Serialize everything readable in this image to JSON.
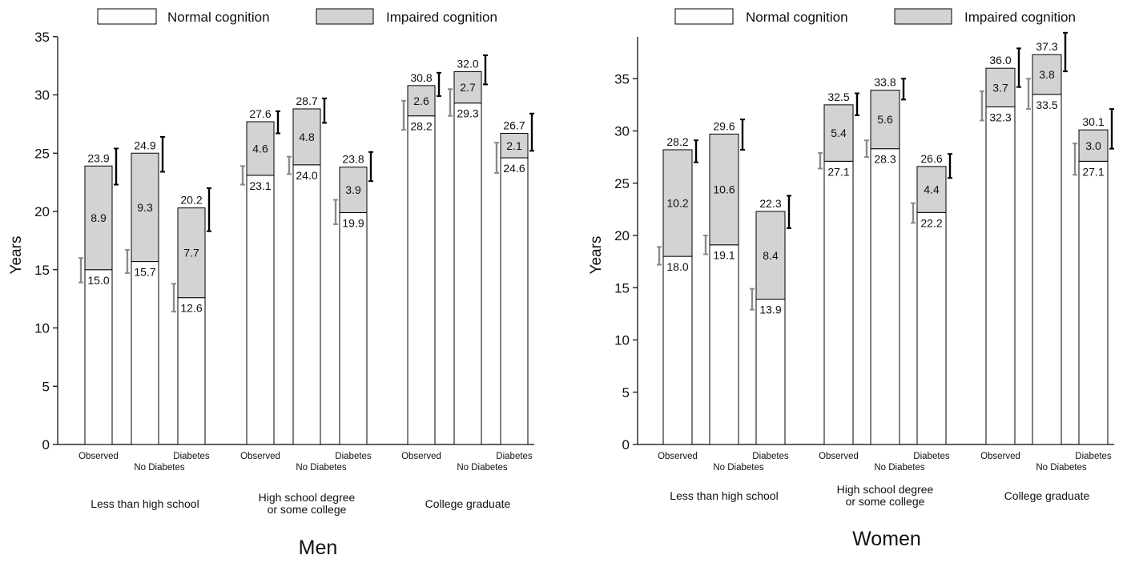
{
  "colors": {
    "normal": "#ffffff",
    "impaired": "#d3d3d3",
    "error_bar_normal": "#8a8a8a",
    "error_bar_total": "#000000"
  },
  "legend": {
    "normal_label": "Normal cognition",
    "impaired_label": "Impaired cognition"
  },
  "chart_data": [
    {
      "type": "bar",
      "stacked": true,
      "title": "Men",
      "ylabel": "Years",
      "ylim": [
        0,
        35
      ],
      "yticks": [
        0,
        5,
        10,
        15,
        20,
        25,
        30,
        35
      ],
      "legend_position": "top",
      "groups": [
        "Less than high school",
        "High school degree\nor some college",
        "College graduate"
      ],
      "bar_labels": [
        "Observed",
        "No Diabetes",
        "Diabetes"
      ],
      "series": [
        {
          "name": "Normal cognition",
          "values": [
            [
              15.0,
              15.7,
              12.6
            ],
            [
              23.1,
              24.0,
              19.9
            ],
            [
              28.2,
              29.3,
              24.6
            ]
          ]
        },
        {
          "name": "Impaired cognition",
          "values": [
            [
              8.9,
              9.3,
              7.7
            ],
            [
              4.6,
              4.8,
              3.9
            ],
            [
              2.6,
              2.7,
              2.1
            ]
          ]
        }
      ],
      "totals": [
        [
          23.9,
          24.9,
          20.2
        ],
        [
          27.6,
          28.7,
          23.8
        ],
        [
          30.8,
          32.0,
          26.7
        ]
      ],
      "normal_ci": [
        [
          [
            13.9,
            16.0
          ],
          [
            14.7,
            16.7
          ],
          [
            11.4,
            13.8
          ]
        ],
        [
          [
            22.3,
            23.9
          ],
          [
            23.2,
            24.7
          ],
          [
            18.9,
            21.0
          ]
        ],
        [
          [
            27.0,
            29.5
          ],
          [
            28.2,
            30.5
          ],
          [
            23.3,
            25.9
          ]
        ]
      ],
      "total_ci": [
        [
          [
            22.3,
            25.4
          ],
          [
            23.4,
            26.4
          ],
          [
            18.3,
            22.0
          ]
        ],
        [
          [
            26.7,
            28.6
          ],
          [
            27.6,
            29.7
          ],
          [
            22.6,
            25.1
          ]
        ],
        [
          [
            29.9,
            31.9
          ],
          [
            30.9,
            33.4
          ],
          [
            25.2,
            28.4
          ]
        ]
      ]
    },
    {
      "type": "bar",
      "stacked": true,
      "title": "Women",
      "ylabel": "Years",
      "ylim": [
        0,
        39
      ],
      "yticks": [
        0,
        5,
        10,
        15,
        20,
        25,
        30,
        35
      ],
      "legend_position": "top",
      "groups": [
        "Less than high school",
        "High school degree\nor some college",
        "College graduate"
      ],
      "bar_labels": [
        "Observed",
        "No Diabetes",
        "Diabetes"
      ],
      "series": [
        {
          "name": "Normal cognition",
          "values": [
            [
              18.0,
              19.1,
              13.9
            ],
            [
              27.1,
              28.3,
              22.2
            ],
            [
              32.3,
              33.5,
              27.1
            ]
          ]
        },
        {
          "name": "Impaired cognition",
          "values": [
            [
              10.2,
              10.6,
              8.4
            ],
            [
              5.4,
              5.6,
              4.4
            ],
            [
              3.7,
              3.8,
              3.0
            ]
          ]
        }
      ],
      "totals": [
        [
          28.2,
          29.6,
          22.3
        ],
        [
          32.5,
          33.8,
          26.6
        ],
        [
          36.0,
          37.3,
          30.1
        ]
      ],
      "normal_ci": [
        [
          [
            17.2,
            18.9
          ],
          [
            18.2,
            20.0
          ],
          [
            12.9,
            14.9
          ]
        ],
        [
          [
            26.4,
            27.9
          ],
          [
            27.5,
            29.1
          ],
          [
            21.2,
            23.1
          ]
        ],
        [
          [
            31.0,
            33.8
          ],
          [
            32.1,
            35.0
          ],
          [
            25.8,
            28.8
          ]
        ]
      ],
      "total_ci": [
        [
          [
            27.0,
            29.1
          ],
          [
            28.2,
            31.1
          ],
          [
            20.7,
            23.8
          ]
        ],
        [
          [
            31.5,
            33.6
          ],
          [
            33.0,
            35.0
          ],
          [
            25.5,
            27.8
          ]
        ],
        [
          [
            34.2,
            37.9
          ],
          [
            35.7,
            39.4
          ],
          [
            28.3,
            32.1
          ]
        ]
      ]
    }
  ]
}
